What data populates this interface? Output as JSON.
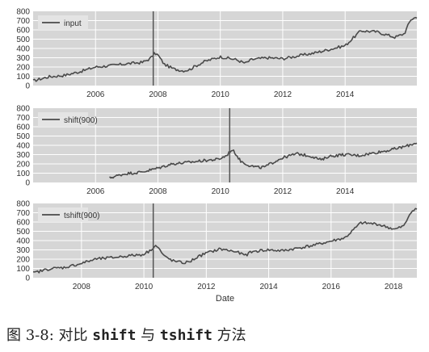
{
  "caption": {
    "figure_label": "图 3-8:",
    "text_prefix": "对比",
    "code_a": "shift",
    "text_mid": "与",
    "code_b": "tshift",
    "text_suffix": "方法"
  },
  "colors": {
    "panel_bg": "#d6d6d6",
    "grid": "#ffffff",
    "series": "#4a4a4a",
    "vline": "#555555",
    "legend_bg": "#e6e6e6"
  },
  "chart_data": [
    {
      "type": "line",
      "legend": "input",
      "legend_position": "top-left",
      "xlabel": "",
      "xlim": [
        2004.0,
        2016.3
      ],
      "ylim": [
        0,
        800
      ],
      "yticks": [
        0,
        100,
        200,
        300,
        400,
        500,
        600,
        700,
        800
      ],
      "xticks": [
        2006,
        2008,
        2010,
        2012,
        2014
      ],
      "grid": true,
      "vline_x": 2007.85,
      "series": [
        {
          "x": [
            2004.0,
            2004.5,
            2005.0,
            2005.5,
            2006.0,
            2006.5,
            2007.0,
            2007.5,
            2007.75,
            2007.9,
            2008.0,
            2008.2,
            2008.5,
            2008.8,
            2009.0,
            2009.2,
            2009.5,
            2010.0,
            2010.5,
            2010.8,
            2011.0,
            2011.5,
            2012.0,
            2012.5,
            2013.0,
            2013.5,
            2014.0,
            2014.5,
            2015.0,
            2015.3,
            2015.6,
            2015.9,
            2016.1,
            2016.3
          ],
          "y": [
            50,
            95,
            110,
            150,
            200,
            215,
            235,
            250,
            290,
            350,
            330,
            230,
            180,
            160,
            170,
            210,
            260,
            310,
            280,
            240,
            280,
            300,
            290,
            320,
            350,
            390,
            430,
            590,
            580,
            550,
            520,
            560,
            710,
            740
          ]
        }
      ]
    },
    {
      "type": "line",
      "legend": "shift(900)",
      "legend_position": "top-left",
      "xlabel": "",
      "xlim": [
        2004.0,
        2016.3
      ],
      "ylim": [
        0,
        800
      ],
      "yticks": [
        0,
        100,
        200,
        300,
        400,
        500,
        600,
        700,
        800
      ],
      "xticks": [
        2006,
        2008,
        2010,
        2012,
        2014
      ],
      "grid": true,
      "vline_x": 2010.3,
      "series": [
        {
          "x": [
            2006.45,
            2006.95,
            2007.45,
            2007.95,
            2008.45,
            2008.95,
            2009.45,
            2009.95,
            2010.2,
            2010.35,
            2010.45,
            2010.65,
            2010.95,
            2011.25,
            2011.45,
            2011.65,
            2011.95,
            2012.45,
            2012.95,
            2013.25,
            2013.45,
            2013.95,
            2014.45,
            2014.95,
            2015.45,
            2015.95,
            2016.3
          ],
          "y": [
            50,
            95,
            110,
            150,
            200,
            215,
            235,
            250,
            290,
            350,
            330,
            230,
            180,
            160,
            170,
            210,
            260,
            310,
            280,
            240,
            280,
            300,
            290,
            320,
            350,
            390,
            430
          ]
        }
      ]
    },
    {
      "type": "line",
      "legend": "tshift(900)",
      "legend_position": "top-left",
      "xlabel": "Date",
      "xlim": [
        2006.45,
        2018.75
      ],
      "ylim": [
        0,
        800
      ],
      "yticks": [
        0,
        100,
        200,
        300,
        400,
        500,
        600,
        700,
        800
      ],
      "xticks": [
        2008,
        2010,
        2012,
        2014,
        2016,
        2018
      ],
      "grid": true,
      "vline_x": 2010.3,
      "series": [
        {
          "x": [
            2006.45,
            2006.95,
            2007.45,
            2007.95,
            2008.45,
            2008.95,
            2009.45,
            2009.95,
            2010.2,
            2010.35,
            2010.45,
            2010.65,
            2010.95,
            2011.25,
            2011.45,
            2011.65,
            2011.95,
            2012.45,
            2012.95,
            2013.25,
            2013.45,
            2013.95,
            2014.45,
            2014.95,
            2015.45,
            2015.95,
            2016.45,
            2016.95,
            2017.45,
            2017.75,
            2018.05,
            2018.35,
            2018.55,
            2018.75
          ],
          "y": [
            50,
            95,
            110,
            150,
            200,
            215,
            235,
            250,
            290,
            350,
            330,
            230,
            180,
            160,
            170,
            210,
            260,
            310,
            280,
            240,
            280,
            300,
            290,
            320,
            350,
            390,
            430,
            590,
            580,
            550,
            520,
            560,
            710,
            740
          ]
        }
      ]
    }
  ]
}
